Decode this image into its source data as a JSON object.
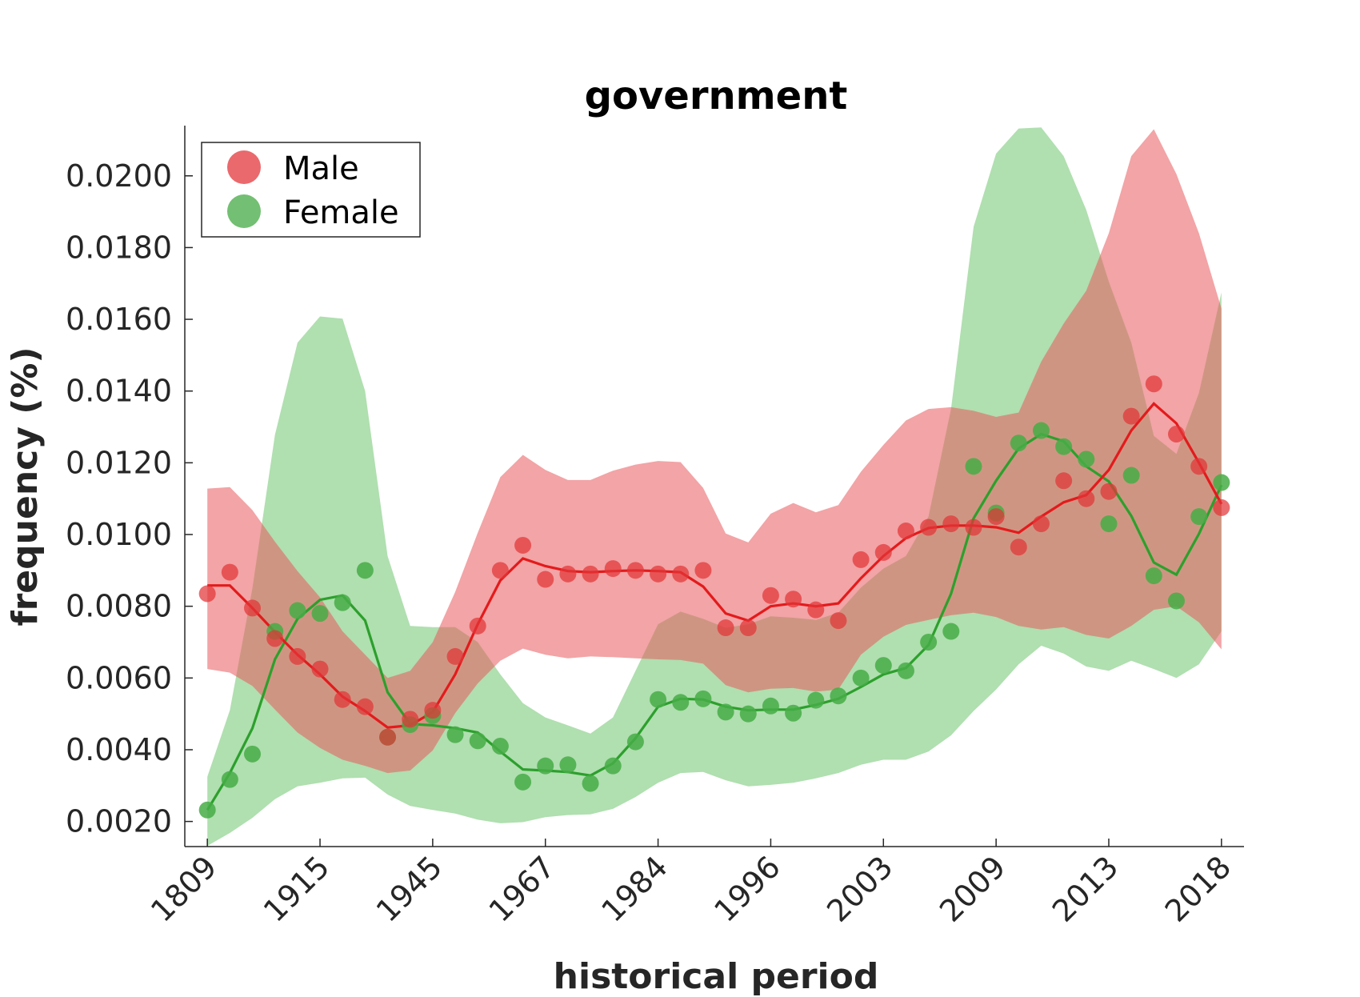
{
  "chart_data": {
    "type": "line",
    "title": "government",
    "xlabel": "historical period",
    "ylabel": "frequency (%)",
    "x_tick_labels": [
      "1809",
      "1915",
      "1945",
      "1967",
      "1984",
      "1996",
      "2003",
      "2009",
      "2013",
      "2018"
    ],
    "y_ticks": [
      0.002,
      0.004,
      0.006,
      0.008,
      0.01,
      0.012,
      0.014,
      0.016,
      0.018,
      0.02
    ],
    "y_tick_labels": [
      "0.0020",
      "0.0040",
      "0.0060",
      "0.0080",
      "0.0100",
      "0.0120",
      "0.0140",
      "0.0160",
      "0.0180",
      "0.0200"
    ],
    "xlim": [
      -1,
      46
    ],
    "ylim": [
      0.0013,
      0.0214
    ],
    "legend_position": "top-left",
    "grid": false,
    "series": [
      {
        "name": "Male",
        "color": "#e41a1c",
        "band_color": "#e8595c",
        "points": [
          0.00835,
          0.00895,
          0.00795,
          0.0071,
          0.0066,
          0.00625,
          0.0054,
          0.0052,
          0.00435,
          0.00485,
          0.0051,
          0.0066,
          0.00745,
          0.009,
          0.0097,
          0.00875,
          0.0089,
          0.0089,
          0.00905,
          0.009,
          0.0089,
          0.0089,
          0.009,
          0.0074,
          0.0074,
          0.0083,
          0.0082,
          0.0079,
          0.0076,
          0.0093,
          0.0095,
          0.0101,
          0.0102,
          0.0103,
          0.0102,
          0.0105,
          0.00965,
          0.0103,
          0.0115,
          0.011,
          0.0112,
          0.0133,
          0.0142,
          0.0128,
          0.0119,
          0.01075
        ],
        "smooth": [
          0.00858,
          0.00858,
          0.00795,
          0.00728,
          0.00665,
          0.0061,
          0.00548,
          0.00508,
          0.00462,
          0.00468,
          0.00505,
          0.0061,
          0.0075,
          0.00872,
          0.00933,
          0.00912,
          0.00898,
          0.00895,
          0.00898,
          0.009,
          0.00898,
          0.00895,
          0.00855,
          0.0078,
          0.0076,
          0.008,
          0.00808,
          0.008,
          0.00808,
          0.00878,
          0.0094,
          0.0099,
          0.01018,
          0.01025,
          0.01025,
          0.0102,
          0.01005,
          0.0105,
          0.0109,
          0.0111,
          0.0118,
          0.0129,
          0.01365,
          0.0131,
          0.012,
          0.01085
        ],
        "upper": [
          0.01128,
          0.01132,
          0.01068,
          0.0098,
          0.00898,
          0.00825,
          0.0073,
          0.00665,
          0.006,
          0.0062,
          0.007,
          0.0084,
          0.01005,
          0.0116,
          0.01222,
          0.0118,
          0.01152,
          0.01152,
          0.01178,
          0.01195,
          0.01205,
          0.01202,
          0.0113,
          0.01003,
          0.00978,
          0.01058,
          0.01088,
          0.01062,
          0.01082,
          0.01175,
          0.0125,
          0.01318,
          0.0135,
          0.01355,
          0.01345,
          0.01328,
          0.0134,
          0.01482,
          0.01588,
          0.0168,
          0.0184,
          0.02055,
          0.0213,
          0.02005,
          0.0184,
          0.0163
        ],
        "lower": [
          0.00625,
          0.00615,
          0.00578,
          0.00512,
          0.00448,
          0.00405,
          0.00372,
          0.00355,
          0.00335,
          0.00342,
          0.00398,
          0.00502,
          0.00585,
          0.00648,
          0.00682,
          0.00665,
          0.00655,
          0.0066,
          0.00658,
          0.00655,
          0.00652,
          0.0065,
          0.0064,
          0.0058,
          0.0056,
          0.0057,
          0.00572,
          0.00562,
          0.00568,
          0.00665,
          0.00715,
          0.00748,
          0.00762,
          0.00775,
          0.00782,
          0.0077,
          0.00745,
          0.00735,
          0.00742,
          0.0072,
          0.0071,
          0.00745,
          0.0079,
          0.008,
          0.00755,
          0.0068
        ]
      },
      {
        "name": "Female",
        "color": "#2ca02c",
        "band_color": "#7fcc7f",
        "points": [
          0.00232,
          0.00317,
          0.00388,
          0.0073,
          0.00788,
          0.0078,
          0.0081,
          0.009,
          0.00435,
          0.0047,
          0.00495,
          0.00442,
          0.00425,
          0.0041,
          0.0031,
          0.00355,
          0.00358,
          0.00306,
          0.00355,
          0.00422,
          0.0054,
          0.00532,
          0.00542,
          0.00505,
          0.005,
          0.00522,
          0.00502,
          0.00538,
          0.0055,
          0.006,
          0.00635,
          0.0062,
          0.007,
          0.0073,
          0.0119,
          0.0106,
          0.01255,
          0.0129,
          0.01245,
          0.0121,
          0.0103,
          0.01165,
          0.00885,
          0.00815,
          0.0105,
          0.01145
        ],
        "smooth": [
          0.00232,
          0.00335,
          0.0046,
          0.00652,
          0.00765,
          0.00818,
          0.0083,
          0.0076,
          0.0056,
          0.00472,
          0.00468,
          0.0046,
          0.00448,
          0.00395,
          0.00345,
          0.00342,
          0.00338,
          0.00328,
          0.00362,
          0.00432,
          0.0052,
          0.00542,
          0.0054,
          0.0052,
          0.0051,
          0.00512,
          0.00512,
          0.00525,
          0.00542,
          0.00575,
          0.0061,
          0.00628,
          0.00692,
          0.00835,
          0.01045,
          0.0115,
          0.0124,
          0.0128,
          0.0126,
          0.0119,
          0.01148,
          0.01052,
          0.00922,
          0.00888,
          0.01002,
          0.01138
        ],
        "upper": [
          0.00325,
          0.0051,
          0.0085,
          0.01278,
          0.01535,
          0.01608,
          0.01602,
          0.014,
          0.0094,
          0.00745,
          0.00742,
          0.00742,
          0.007,
          0.0061,
          0.0053,
          0.0049,
          0.00468,
          0.00445,
          0.0049,
          0.0062,
          0.0075,
          0.00785,
          0.00765,
          0.0074,
          0.0075,
          0.00772,
          0.00768,
          0.00762,
          0.00782,
          0.00852,
          0.00905,
          0.0094,
          0.0105,
          0.0135,
          0.01858,
          0.02062,
          0.02132,
          0.02135,
          0.02055,
          0.01905,
          0.01705,
          0.01535,
          0.01275,
          0.01225,
          0.01395,
          0.01675
        ],
        "lower": [
          0.00132,
          0.00168,
          0.0021,
          0.00262,
          0.00298,
          0.00308,
          0.0032,
          0.00322,
          0.00275,
          0.00243,
          0.00232,
          0.00222,
          0.00205,
          0.00195,
          0.00198,
          0.00212,
          0.00218,
          0.0022,
          0.00235,
          0.00268,
          0.00308,
          0.00335,
          0.00338,
          0.00315,
          0.00298,
          0.00302,
          0.00308,
          0.0032,
          0.00335,
          0.00358,
          0.00372,
          0.00372,
          0.00395,
          0.0044,
          0.00508,
          0.00568,
          0.00638,
          0.0069,
          0.00668,
          0.00632,
          0.0062,
          0.00648,
          0.00625,
          0.006,
          0.00638,
          0.0073
        ]
      }
    ]
  }
}
